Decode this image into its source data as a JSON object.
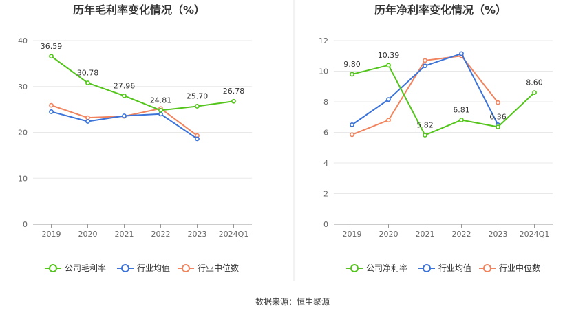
{
  "source_text": "数据来源：恒生聚源",
  "chart_data": [
    {
      "type": "line",
      "title": "历年毛利率变化情况（%）",
      "categories": [
        "2019",
        "2020",
        "2021",
        "2022",
        "2023",
        "2024Q1"
      ],
      "ylim": [
        0,
        40
      ],
      "yticks": [
        0,
        10,
        20,
        30,
        40
      ],
      "grid": true,
      "legend_position": "bottom",
      "series": [
        {
          "name": "公司毛利率",
          "color": "#52c41a",
          "labeled": true,
          "values": [
            36.59,
            30.78,
            27.96,
            24.81,
            25.7,
            26.78
          ],
          "labels": [
            "36.59",
            "30.78",
            "27.96",
            "24.81",
            "25.70",
            "26.78"
          ]
        },
        {
          "name": "行业均值",
          "color": "#3b73d8",
          "labeled": false,
          "values": [
            24.5,
            22.4,
            23.6,
            24.0,
            18.6,
            null
          ]
        },
        {
          "name": "行业中位数",
          "color": "#f0845f",
          "labeled": false,
          "values": [
            25.9,
            23.2,
            23.5,
            25.2,
            19.3,
            null
          ]
        }
      ]
    },
    {
      "type": "line",
      "title": "历年净利率变化情况（%）",
      "categories": [
        "2019",
        "2020",
        "2021",
        "2022",
        "2023",
        "2024Q1"
      ],
      "ylim": [
        0,
        12
      ],
      "yticks": [
        0,
        2,
        4,
        6,
        8,
        10,
        12
      ],
      "grid": true,
      "legend_position": "bottom",
      "series": [
        {
          "name": "公司净利率",
          "color": "#52c41a",
          "labeled": true,
          "values": [
            9.8,
            10.39,
            5.82,
            6.81,
            6.36,
            8.6
          ],
          "labels": [
            "9.80",
            "10.39",
            "5.82",
            "6.81",
            "6.36",
            "8.60"
          ]
        },
        {
          "name": "行业均值",
          "color": "#3b73d8",
          "labeled": false,
          "values": [
            6.5,
            8.15,
            10.35,
            11.15,
            6.5,
            null
          ]
        },
        {
          "name": "行业中位数",
          "color": "#f0845f",
          "labeled": false,
          "values": [
            5.85,
            6.8,
            10.7,
            11.0,
            7.95,
            null
          ]
        }
      ]
    }
  ]
}
